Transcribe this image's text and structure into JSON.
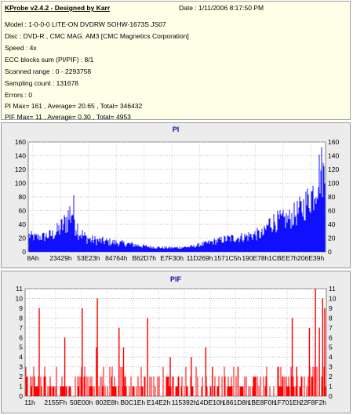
{
  "header": {
    "app_title": "KProbe v2.4.2 - Designed by Karr",
    "date_label": "Date : 1/11/2006 8:17:50 PM",
    "lines": [
      "Model : 1-0-0-0 LITE-ON DVDRW SOHW-1673S JS07",
      "Disc : DVD-R , CMC MAG. AM3 [CMC Magnetics Corporation]",
      "Speed : 4x",
      "ECC blocks sum (PI/PIF) : 8/1",
      "Scanned range : 0 - 2293758",
      "Sampling count : 131678",
      "Errors : 0",
      "PI Max= 161 , Average= 20.65 , Total= 346432",
      "PIF Max= 11 , Average= 0.30 , Total= 4953"
    ]
  },
  "colors": {
    "pi_fill": "#1010ff",
    "pif_fill": "#ff0000",
    "plot_bg": "#ffffff",
    "title_color": "#1010a0"
  },
  "chart_data": [
    {
      "type": "bar",
      "title": "PI",
      "xlabel": "",
      "ylabel": "",
      "ylim": [
        0,
        160
      ],
      "yticks": [
        0,
        20,
        40,
        60,
        80,
        100,
        120,
        140,
        160
      ],
      "xtick_labels": [
        "8Ah",
        "23429h",
        "53E23h",
        "84764h",
        "B62D7h",
        "E7F30h",
        "11D269h",
        "1571C5h",
        "190E78h",
        "1CBEE7h",
        "206E39h"
      ],
      "grid": true,
      "envelope": {
        "x_fraction": [
          0,
          0.02,
          0.05,
          0.08,
          0.1,
          0.12,
          0.135,
          0.145,
          0.15,
          0.16,
          0.17,
          0.19,
          0.21,
          0.25,
          0.3,
          0.35,
          0.4,
          0.45,
          0.5,
          0.55,
          0.58,
          0.61,
          0.64,
          0.67,
          0.7,
          0.73,
          0.75,
          0.77,
          0.79,
          0.8,
          0.81,
          0.83,
          0.86,
          0.88,
          0.9,
          0.92,
          0.94,
          0.96,
          0.975,
          0.985,
          0.995,
          1.0
        ],
        "peak": [
          32,
          28,
          30,
          35,
          45,
          60,
          80,
          95,
          88,
          60,
          42,
          30,
          25,
          22,
          18,
          15,
          10,
          8,
          8,
          10,
          14,
          18,
          22,
          26,
          28,
          30,
          33,
          35,
          35,
          45,
          58,
          60,
          62,
          65,
          75,
          85,
          100,
          120,
          150,
          161,
          150,
          140
        ],
        "base": [
          16,
          14,
          14,
          15,
          18,
          22,
          25,
          28,
          25,
          20,
          16,
          12,
          10,
          9,
          8,
          6,
          5,
          4,
          4,
          5,
          7,
          9,
          11,
          12,
          13,
          14,
          15,
          16,
          16,
          22,
          26,
          28,
          30,
          32,
          36,
          40,
          48,
          55,
          70,
          80,
          70,
          65
        ]
      }
    },
    {
      "type": "bar",
      "title": "PIF",
      "xlabel": "",
      "ylabel": "",
      "ylim": [
        0,
        11
      ],
      "yticks": [
        0,
        1,
        2,
        3,
        4,
        5,
        6,
        7,
        8,
        9,
        10,
        11
      ],
      "xtick_labels": [
        "11h",
        "2155Fh",
        "50E00h",
        "802E8h",
        "B0C1Eh",
        "E14E2h",
        "115392h",
        "14DE10h",
        "1861D8h",
        "1BE8F0h",
        "1F701Eh",
        "22F8F2h"
      ],
      "grid": true,
      "tall_spikes": [
        {
          "x_fraction": 0.045,
          "value": 9
        },
        {
          "x_fraction": 0.13,
          "value": 6
        },
        {
          "x_fraction": 0.188,
          "value": 9
        },
        {
          "x_fraction": 0.238,
          "value": 10
        },
        {
          "x_fraction": 0.235,
          "value": 5
        },
        {
          "x_fraction": 0.31,
          "value": 7
        },
        {
          "x_fraction": 0.325,
          "value": 5
        },
        {
          "x_fraction": 0.405,
          "value": 8
        },
        {
          "x_fraction": 0.48,
          "value": 4
        },
        {
          "x_fraction": 0.55,
          "value": 4
        },
        {
          "x_fraction": 0.598,
          "value": 5
        },
        {
          "x_fraction": 0.62,
          "value": 3
        },
        {
          "x_fraction": 0.705,
          "value": 3
        },
        {
          "x_fraction": 0.885,
          "value": 8
        },
        {
          "x_fraction": 0.9,
          "value": 3
        },
        {
          "x_fraction": 0.942,
          "value": 7
        },
        {
          "x_fraction": 0.962,
          "value": 11
        },
        {
          "x_fraction": 0.975,
          "value": 7
        },
        {
          "x_fraction": 0.986,
          "value": 10
        },
        {
          "x_fraction": 0.993,
          "value": 9
        }
      ],
      "baseline_level": 2
    }
  ]
}
